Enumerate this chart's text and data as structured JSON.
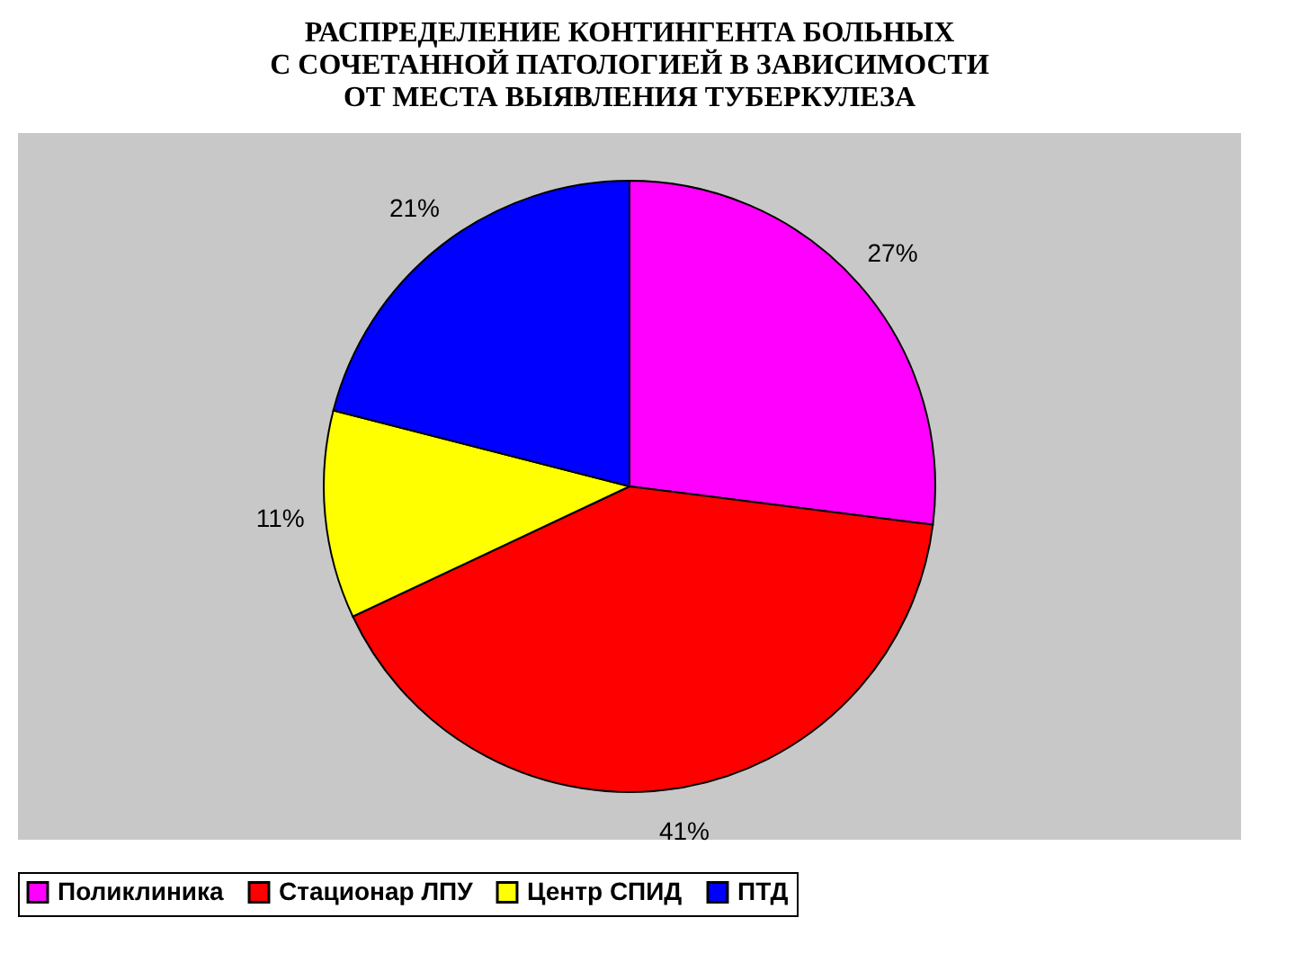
{
  "chart_data": {
    "type": "pie",
    "title": "РАСПРЕДЕЛЕНИЕ КОНТИНГЕНТА БОЛЬНЫХ\nС СОЧЕТАННОЙ ПАТОЛОГИЕЙ В ЗАВИСИМОСТИ\nОТ МЕСТА ВЫЯВЛЕНИЯ ТУБЕРКУЛЕЗА",
    "categories": [
      "Поликлиника",
      "Стационар ЛПУ",
      "Центр СПИД",
      "ПТД"
    ],
    "values": [
      27,
      41,
      11,
      21
    ],
    "colors": [
      "#ff00ff",
      "#ff0000",
      "#ffff00",
      "#0000ff"
    ],
    "value_labels": [
      "27%",
      "41%",
      "11%",
      "21%"
    ],
    "legend": "bottom"
  }
}
